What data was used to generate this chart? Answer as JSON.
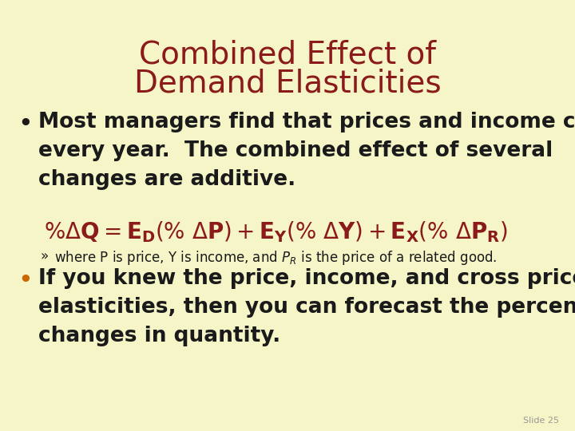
{
  "background_color": "#f5f5c8",
  "title_line1": "Combined Effect of",
  "title_line2": "Demand Elasticities",
  "title_color": "#8b1a1a",
  "title_fontsize": 28,
  "bullet_text_color": "#1a1a1a",
  "formula_color": "#8b1a1a",
  "slide_label": "Slide 25",
  "slide_label_color": "#999999",
  "bullet1_lines": [
    "Most managers find that prices and income change",
    "every year.  The combined effect of several",
    "changes are additive."
  ],
  "bullet2_lines": [
    "If you knew the price, income, and cross price",
    "elasticities, then you can forecast the percentage",
    "changes in quantity."
  ],
  "bullet_fontsize": 19,
  "formula_fontsize": 20,
  "sub_bullet_fontsize": 12
}
